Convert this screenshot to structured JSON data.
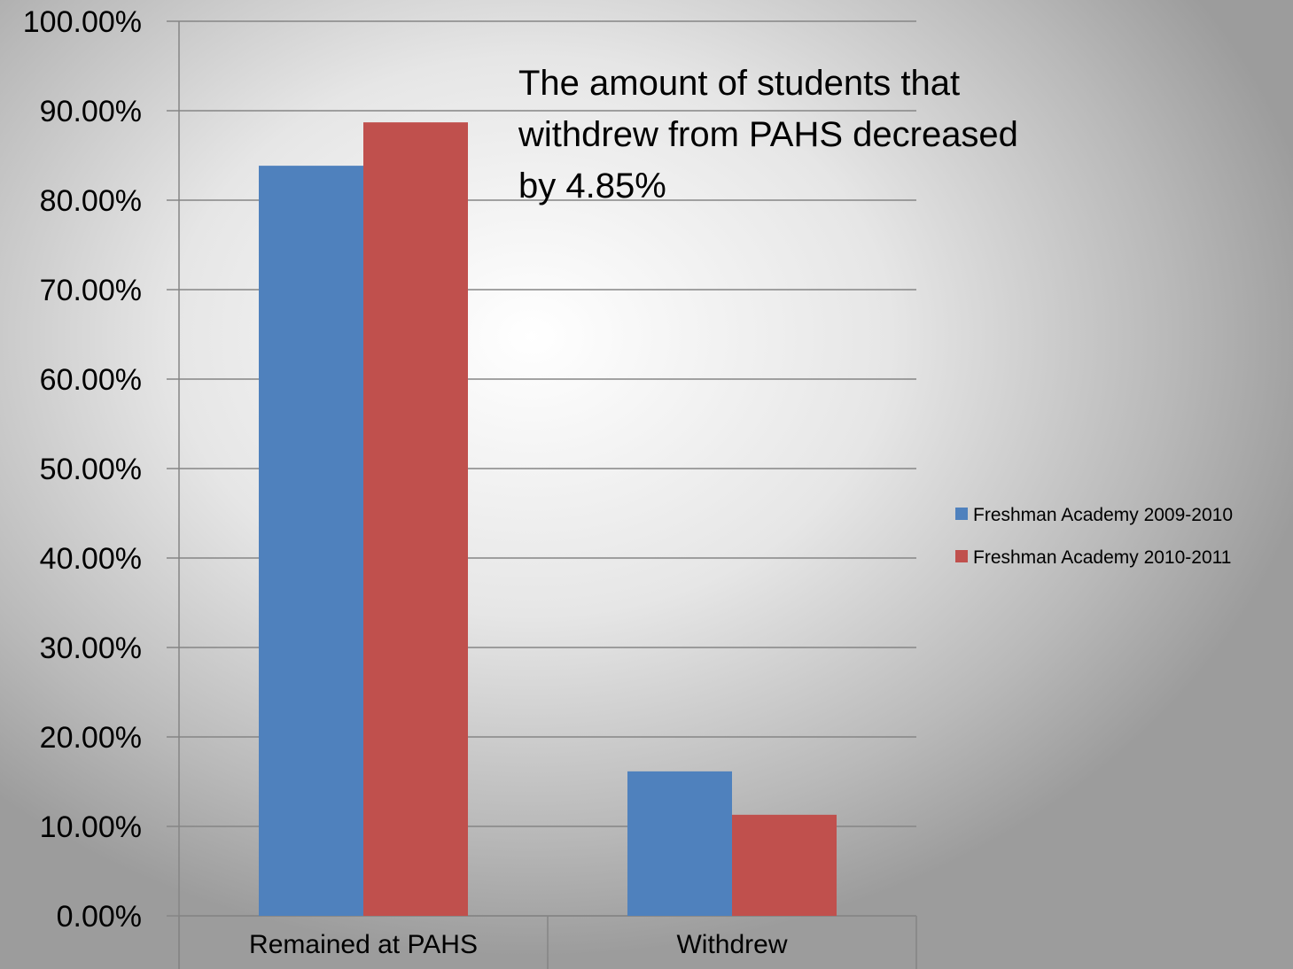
{
  "chart_data": {
    "type": "bar",
    "categories": [
      "Remained at PAHS",
      "Withdrew"
    ],
    "series": [
      {
        "name": "Freshman Academy 2009-2010",
        "values": [
          83.85,
          16.15
        ],
        "color": "#4f81bd"
      },
      {
        "name": "Freshman Academy 2010-2011",
        "values": [
          88.7,
          11.3
        ],
        "color": "#c0504d"
      }
    ],
    "y_ticks": [
      "0.00%",
      "10.00%",
      "20.00%",
      "30.00%",
      "40.00%",
      "50.00%",
      "60.00%",
      "70.00%",
      "80.00%",
      "90.00%",
      "100.00%"
    ],
    "ylim": [
      0,
      100
    ],
    "grid": true,
    "legend_position": "right",
    "annotation": [
      "The amount of students that",
      "withdrew from PAHS decreased",
      "by 4.85%"
    ],
    "title": "",
    "xlabel": "",
    "ylabel": ""
  }
}
